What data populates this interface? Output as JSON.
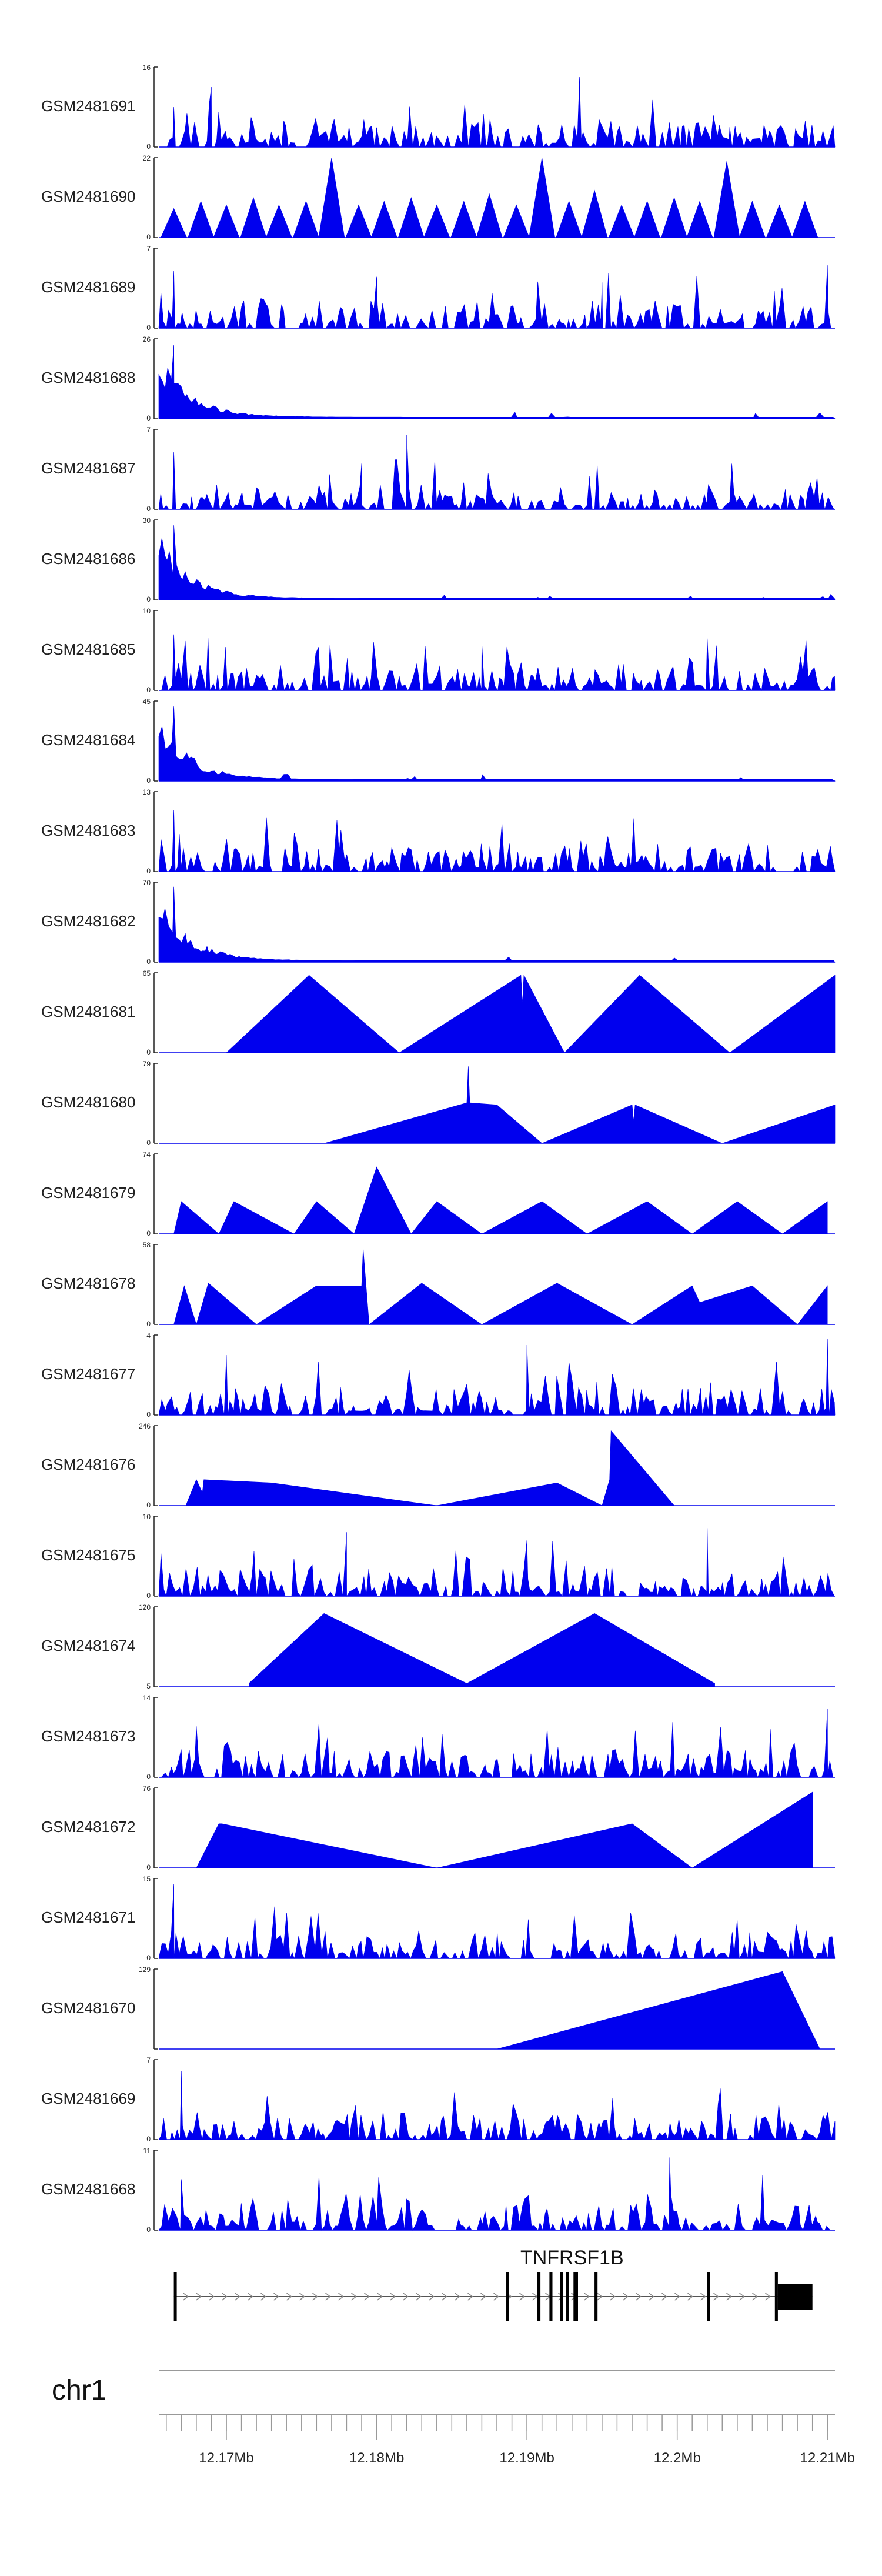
{
  "chart_data": {
    "type": "area",
    "title": "",
    "xlabel": "",
    "ylabel": "",
    "fill_color": "#0000EE",
    "x_unit": "Mb",
    "xlim": [
      12.1655,
      12.2105
    ],
    "tracks": [
      {
        "name": "GSM2481691",
        "ymax": "16",
        "ymin": "0",
        "ymax_value": 16,
        "style": "dense",
        "seed": 11,
        "peak_x": [
          12.1665,
          12.169,
          12.1935,
          12.2035
        ],
        "peak_y": [
          8,
          12,
          14,
          4
        ]
      },
      {
        "name": "GSM2481690",
        "ymax": "22",
        "ymin": "0",
        "ymax_value": 22,
        "style": "sparse",
        "seed": 23,
        "x": [
          12.1665,
          12.1683,
          12.17,
          12.1718,
          12.1735,
          12.1753,
          12.177,
          12.1788,
          12.1805,
          12.1823,
          12.184,
          12.1858,
          12.1875,
          12.1893,
          12.191,
          12.1928,
          12.1945,
          12.1963,
          12.198,
          12.1998,
          12.2015,
          12.2033,
          12.205,
          12.2068,
          12.2085
        ],
        "y": [
          8,
          10,
          9,
          11,
          9,
          10,
          22,
          9,
          10,
          11,
          9,
          10,
          12,
          9,
          22,
          10,
          13,
          9,
          10,
          11,
          10,
          21,
          10,
          9,
          10
        ]
      },
      {
        "name": "GSM2481689",
        "ymax": "7",
        "ymin": "0",
        "ymax_value": 7,
        "style": "dense",
        "seed": 37,
        "peak_x": [
          12.1665,
          12.18,
          12.195,
          12.21
        ],
        "peak_y": [
          5,
          4.5,
          4,
          5.5
        ]
      },
      {
        "name": "GSM2481688",
        "ymax": "26",
        "ymin": "0",
        "ymax_value": 26,
        "style": "decay",
        "seed": 41,
        "peak_x": [
          12.1665
        ],
        "peak_y": [
          24
        ]
      },
      {
        "name": "GSM2481687",
        "ymax": "7",
        "ymin": "0",
        "ymax_value": 7,
        "style": "dense",
        "seed": 53,
        "peak_x": [
          12.1665,
          12.179,
          12.182
        ],
        "peak_y": [
          5,
          4,
          6.5
        ]
      },
      {
        "name": "GSM2481686",
        "ymax": "30",
        "ymin": "0",
        "ymax_value": 30,
        "style": "decay",
        "seed": 61,
        "peak_x": [
          12.1665
        ],
        "peak_y": [
          28
        ]
      },
      {
        "name": "GSM2481685",
        "ymax": "10",
        "ymin": "0",
        "ymax_value": 10,
        "style": "dense",
        "seed": 71,
        "peak_x": [
          12.1665,
          12.187,
          12.202
        ],
        "peak_y": [
          7,
          6,
          6.5
        ]
      },
      {
        "name": "GSM2481684",
        "ymax": "45",
        "ymin": "0",
        "ymax_value": 45,
        "style": "decay",
        "seed": 83,
        "peak_x": [
          12.1665
        ],
        "peak_y": [
          42
        ]
      },
      {
        "name": "GSM2481683",
        "ymax": "13",
        "ymin": "0",
        "ymax_value": 13,
        "style": "dense",
        "seed": 97,
        "peak_x": [
          12.1665
        ],
        "peak_y": [
          10
        ]
      },
      {
        "name": "GSM2481682",
        "ymax": "70",
        "ymin": "0",
        "ymax_value": 70,
        "style": "decay",
        "seed": 101,
        "peak_x": [
          12.1665
        ],
        "peak_y": [
          66
        ]
      },
      {
        "name": "GSM2481681",
        "ymax": "65",
        "ymin": "0",
        "ymax_value": 65,
        "style": "points",
        "x": [
          12.17,
          12.1755,
          12.1815,
          12.1896,
          12.1897,
          12.1898,
          12.1925,
          12.1975,
          12.2035,
          12.2105
        ],
        "y": [
          0,
          63,
          0,
          63,
          40,
          63,
          0,
          63,
          0,
          63
        ]
      },
      {
        "name": "GSM2481680",
        "ymax": "79",
        "ymin": "0",
        "ymax_value": 79,
        "style": "points",
        "x": [
          12.1665,
          12.1765,
          12.186,
          12.1861,
          12.1862,
          12.188,
          12.191,
          12.197,
          12.1971,
          12.1972,
          12.203,
          12.2105
        ],
        "y": [
          0,
          0,
          40,
          76,
          40,
          38,
          0,
          38,
          22,
          38,
          0,
          38
        ]
      },
      {
        "name": "GSM2481679",
        "ymax": "74",
        "ymin": "0",
        "ymax_value": 74,
        "style": "points",
        "x": [
          12.1665,
          12.167,
          12.1695,
          12.1705,
          12.1745,
          12.176,
          12.1785,
          12.18,
          12.1823,
          12.184,
          12.187,
          12.191,
          12.194,
          12.198,
          12.201,
          12.204,
          12.207,
          12.21
        ],
        "y": [
          0,
          30,
          0,
          30,
          0,
          30,
          0,
          62,
          0,
          30,
          0,
          30,
          0,
          30,
          0,
          30,
          0,
          30
        ]
      },
      {
        "name": "GSM2481678",
        "ymax": "58",
        "ymin": "0",
        "ymax_value": 58,
        "style": "points",
        "x": [
          12.1665,
          12.1672,
          12.168,
          12.1688,
          12.172,
          12.176,
          12.179,
          12.1791,
          12.1795,
          12.183,
          12.187,
          12.192,
          12.197,
          12.201,
          12.2015,
          12.205,
          12.208,
          12.21
        ],
        "y": [
          0,
          28,
          0,
          30,
          0,
          28,
          28,
          55,
          0,
          30,
          0,
          30,
          0,
          28,
          16,
          28,
          0,
          28
        ]
      },
      {
        "name": "GSM2481677",
        "ymax": "4",
        "ymin": "0",
        "ymax_value": 4,
        "style": "dense",
        "seed": 131,
        "peak_x": [
          12.17,
          12.19,
          12.21
        ],
        "peak_y": [
          3,
          3.5,
          3.8
        ]
      },
      {
        "name": "GSM2481676",
        "ymax": "246",
        "ymin": "0",
        "ymax_value": 246,
        "style": "points",
        "x": [
          12.1665,
          12.1673,
          12.168,
          12.1684,
          12.1685,
          12.173,
          12.184,
          12.192,
          12.195,
          12.1955,
          12.1956,
          12.1998,
          12.21
        ],
        "y": [
          0,
          0,
          80,
          40,
          80,
          70,
          0,
          70,
          0,
          80,
          230,
          0,
          0
        ]
      },
      {
        "name": "GSM2481675",
        "ymax": "10",
        "ymin": "0",
        "ymax_value": 10,
        "style": "dense",
        "seed": 151,
        "peak_x": [
          12.178,
          12.19,
          12.202
        ],
        "peak_y": [
          8,
          7,
          8.5
        ]
      },
      {
        "name": "GSM2481674",
        "ymax": "120",
        "ymin": "5",
        "ymax_value": 120,
        "style": "points",
        "x": [
          12.1715,
          12.1765,
          12.186,
          12.1945,
          12.2025
        ],
        "y": [
          5,
          110,
          5,
          110,
          5
        ]
      },
      {
        "name": "GSM2481673",
        "ymax": "14",
        "ymin": "0",
        "ymax_value": 14,
        "style": "dense",
        "seed": 173,
        "peak_x": [
          12.168,
          12.21
        ],
        "peak_y": [
          9,
          12
        ]
      },
      {
        "name": "GSM2481672",
        "ymax": "76",
        "ymin": "0",
        "ymax_value": 76,
        "style": "points",
        "x": [
          12.168,
          12.1695,
          12.1696,
          12.1697,
          12.184,
          12.197,
          12.201,
          12.209
        ],
        "y": [
          0,
          42,
          42,
          42,
          0,
          42,
          0,
          72
        ]
      },
      {
        "name": "GSM2481671",
        "ymax": "15",
        "ymin": "0",
        "ymax_value": 15,
        "style": "dense",
        "seed": 191,
        "peak_x": [
          12.1665
        ],
        "peak_y": [
          14
        ]
      },
      {
        "name": "GSM2481670",
        "ymax": "129",
        "ymin": "",
        "ymax_value": 129,
        "style": "points",
        "x": [
          12.188,
          12.207,
          12.2095
        ],
        "y": [
          0,
          125,
          0
        ]
      },
      {
        "name": "GSM2481669",
        "ymax": "7",
        "ymin": "0",
        "ymax_value": 7,
        "style": "dense",
        "seed": 211,
        "peak_x": [
          12.167
        ],
        "peak_y": [
          6
        ]
      },
      {
        "name": "GSM2481668",
        "ymax": "11",
        "ymin": "0",
        "ymax_value": 11,
        "style": "dense",
        "seed": 223,
        "peak_x": [
          12.167,
          12.1995
        ],
        "peak_y": [
          7,
          10
        ]
      }
    ],
    "gene": {
      "name": "TNFRSF1B",
      "strand": "+",
      "start": 12.1665,
      "end": 12.209,
      "exons": [
        {
          "start": 12.1665,
          "end": 12.1666
        },
        {
          "start": 12.1886,
          "end": 12.1888
        },
        {
          "start": 12.1907,
          "end": 12.1909
        },
        {
          "start": 12.1915,
          "end": 12.1917
        },
        {
          "start": 12.1922,
          "end": 12.1924
        },
        {
          "start": 12.1926,
          "end": 12.1928
        },
        {
          "start": 12.1931,
          "end": 12.1934
        },
        {
          "start": 12.1945,
          "end": 12.1947
        },
        {
          "start": 12.202,
          "end": 12.2022
        },
        {
          "start": 12.2065,
          "end": 12.2067
        }
      ],
      "utr3": {
        "start": 12.2067,
        "end": 12.209
      }
    },
    "chromosome": "chr1",
    "axis": {
      "major_ticks": [
        12.17,
        12.18,
        12.19,
        12.2,
        12.21
      ],
      "tick_labels": [
        "12.17Mb",
        "12.18Mb",
        "12.19Mb",
        "12.2Mb",
        "12.21Mb"
      ],
      "minor_step": 0.001
    }
  }
}
